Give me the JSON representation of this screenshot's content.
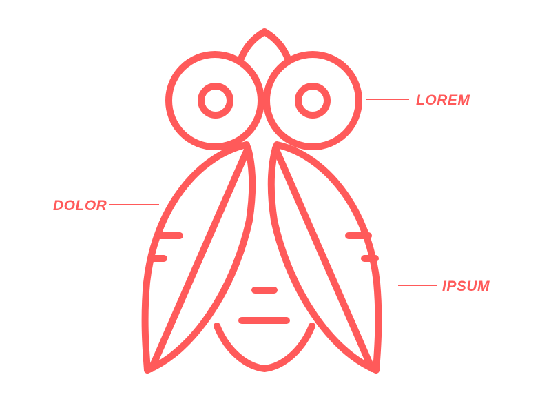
{
  "colors": {
    "accent": "#FF5A5A",
    "background": "#FFFFFF"
  },
  "icon": {
    "name": "fly-icon"
  },
  "labels": {
    "lorem": "LOREM",
    "dolor": "DOLOR",
    "ipsum": "IPSUM"
  }
}
